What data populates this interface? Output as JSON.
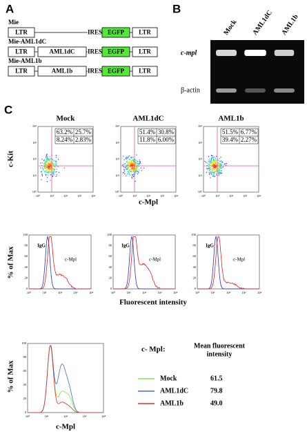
{
  "panel_a": {
    "label": "A",
    "constructs": [
      {
        "name": "Mie",
        "parts": [
          "LTR",
          "IRES",
          "EGFP",
          "LTR"
        ]
      },
      {
        "name": "Mie-AML1dC",
        "parts": [
          "LTR",
          "AML1dC",
          "IRES",
          "EGFP",
          "LTR"
        ]
      },
      {
        "name": "Mie-AML1b",
        "parts": [
          "LTR",
          "AML1b",
          "IRES",
          "EGFP",
          "LTR"
        ]
      }
    ]
  },
  "panel_b": {
    "label": "B",
    "lanes": [
      "Mock",
      "AML1dC",
      "AML1b"
    ],
    "rows": [
      "c-mpl",
      "β-actin"
    ]
  },
  "panel_c": {
    "label": "C",
    "samples": [
      {
        "name": "Mock",
        "quadrants": [
          "63.2%",
          "25.7%",
          "8.24%",
          "2.83%"
        ]
      },
      {
        "name": "AML1dC",
        "quadrants": [
          "51.4%",
          "30.8%",
          "11.8%",
          "6.00%"
        ]
      },
      {
        "name": "AML1b",
        "quadrants": [
          "51.5%",
          "6.77%",
          "39.4%",
          "2.27%"
        ]
      }
    ],
    "scatter_y_label": "c-Kit",
    "scatter_x_label": "c-Mpl",
    "log_ticks": [
      "10⁰",
      "10¹",
      "10²",
      "10³",
      "10⁴"
    ],
    "hist_y_label": "% of Max",
    "hist_yticks": [
      0,
      20,
      40,
      60,
      80,
      100
    ],
    "hist_labels": [
      "IgG",
      "c-Mpl"
    ],
    "hist_x_label": "Fluorescent intensity",
    "overlay": {
      "x_label": "c-Mpl",
      "legend_title": "c- Mpl:",
      "legend_header": [
        "Mean fluorescent",
        "intensity"
      ],
      "rows": [
        {
          "name": "Mock",
          "color": "#86e04a",
          "value": "61.5"
        },
        {
          "name": "AML1dC",
          "color": "#3a6fd8",
          "value": "79.8"
        },
        {
          "name": "AML1b",
          "color": "#e03020",
          "value": "49.0"
        }
      ]
    }
  }
}
